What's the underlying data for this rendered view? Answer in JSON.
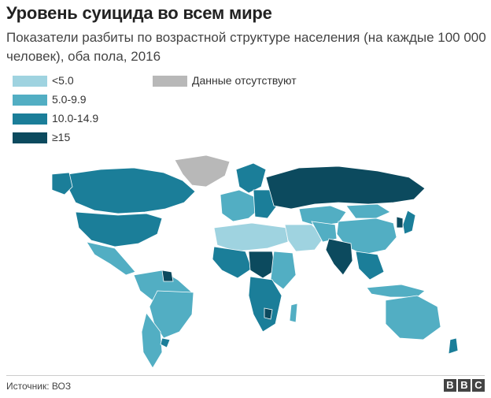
{
  "title": "Уровень суицида во всем мире",
  "subtitle": "Показатели разбиты по возрастной структуре населения (на каждые 100 000 человек), оба пола, 2016",
  "legend": [
    {
      "label": "<5.0",
      "color": "#9fd3e0"
    },
    {
      "label": "5.0-9.9",
      "color": "#52aec3"
    },
    {
      "label": "10.0-14.9",
      "color": "#1b7e99"
    },
    {
      "label": "≥15",
      "color": "#0c4a5e"
    }
  ],
  "missing_data": {
    "label": "Данные отсутствуют",
    "color": "#b8b8b8"
  },
  "source": "Источник: ВОЗ",
  "brand": [
    "B",
    "B",
    "C"
  ]
}
